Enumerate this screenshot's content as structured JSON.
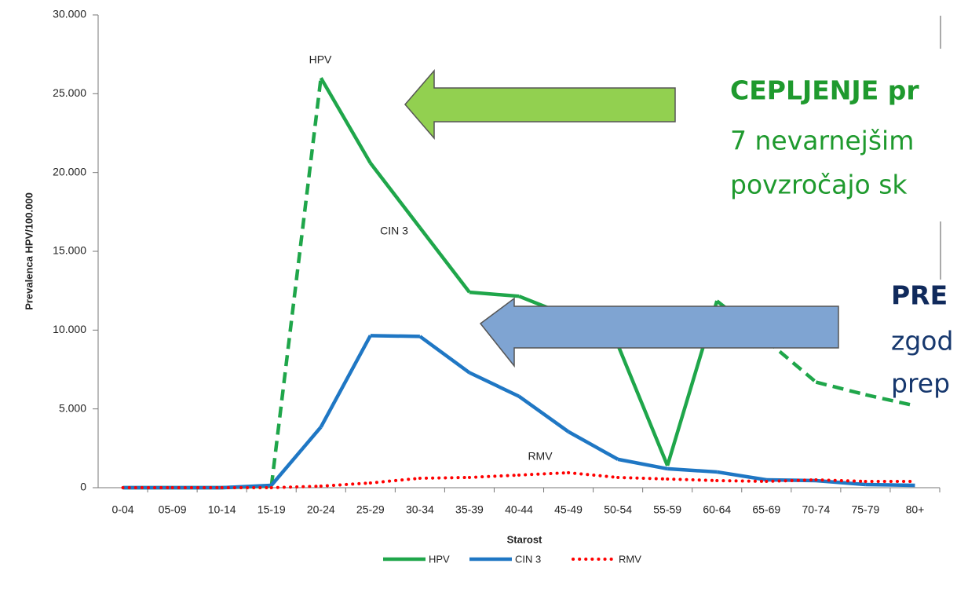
{
  "chart_data": {
    "type": "line",
    "y_axis_label": "Prevalenca HPV/100.000",
    "x_axis_label": "Starost",
    "categories": [
      "0-04",
      "05-09",
      "10-14",
      "15-19",
      "20-24",
      "25-29",
      "30-34",
      "35-39",
      "40-44",
      "45-49",
      "50-54",
      "55-59",
      "60-64",
      "65-69",
      "70-74",
      "75-79",
      "80+"
    ],
    "series": [
      {
        "name": "HPV",
        "color": "#1fa64a",
        "style": "solid",
        "dash_ranges": [
          [
            3,
            4
          ],
          [
            12,
            16
          ]
        ],
        "values": [
          0,
          0,
          0,
          100,
          26000,
          20600,
          16500,
          12400,
          12150,
          10900,
          9050,
          1400,
          11850,
          9350,
          6700,
          5900,
          5200
        ]
      },
      {
        "name": "CIN 3",
        "color": "#1f77c4",
        "style": "solid",
        "values": [
          0,
          0,
          0,
          150,
          3850,
          9650,
          9600,
          7300,
          5800,
          3550,
          1800,
          1200,
          1000,
          500,
          450,
          200,
          150
        ]
      },
      {
        "name": "RMV",
        "color": "#ff0000",
        "style": "dotted",
        "values": [
          0,
          0,
          0,
          0,
          100,
          300,
          600,
          650,
          800,
          950,
          650,
          550,
          450,
          400,
          500,
          400,
          400
        ]
      }
    ],
    "annotations": [
      "HPV",
      "CIN 3",
      "RMV"
    ],
    "ylim": [
      0,
      30000
    ],
    "yticks": [
      0,
      {
        "value": 5000,
        "label": "5.000"
      },
      {
        "value": 10000,
        "label": "10.000"
      },
      {
        "value": 15000,
        "label": "15.000"
      },
      {
        "value": 20000,
        "label": "20.000"
      },
      {
        "value": 25000,
        "label": "25.000"
      },
      {
        "value": 30000,
        "label": "30.000"
      }
    ],
    "legend": "bottom"
  },
  "overlay": {
    "green": [
      "CEPLJENJE pr",
      "7 nevarnejšim",
      "povzročajo sk"
    ],
    "blue": [
      "PRE",
      "zgod",
      "prep"
    ]
  }
}
